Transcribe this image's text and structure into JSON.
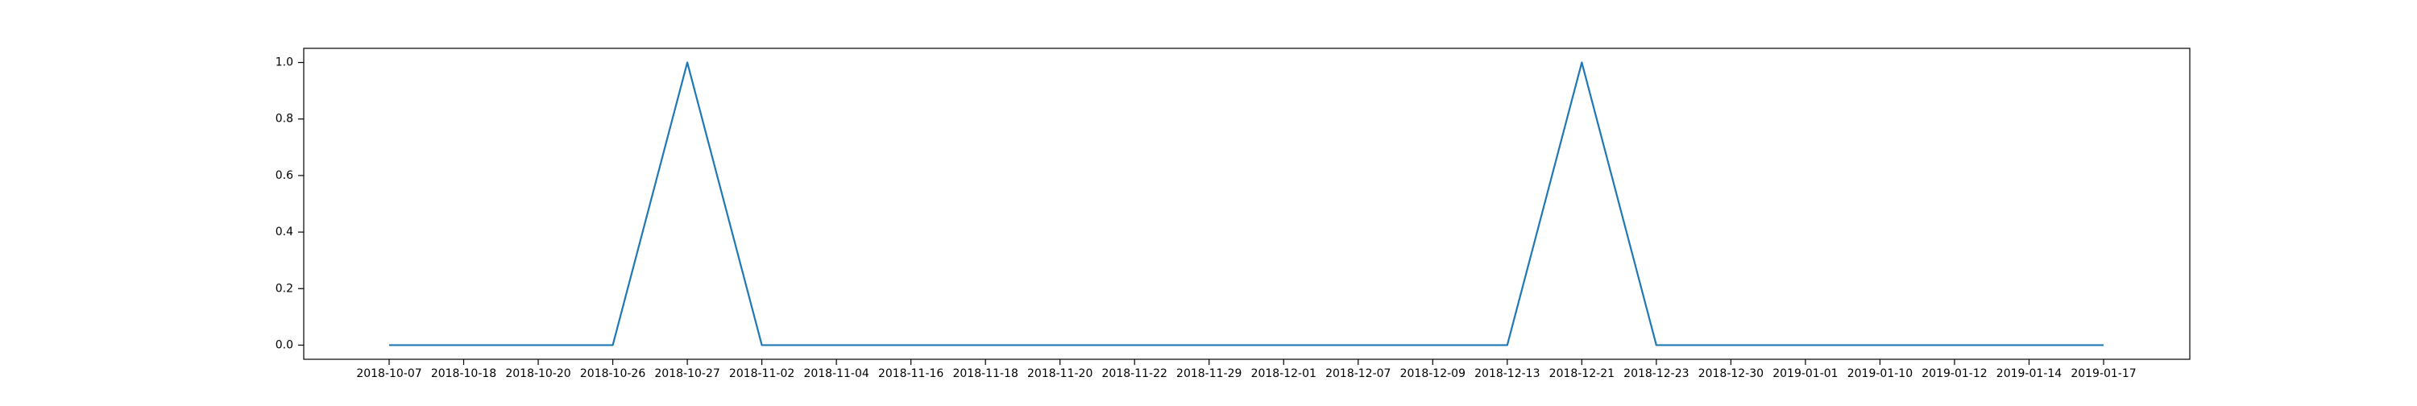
{
  "chart_data": {
    "type": "line",
    "title": "",
    "xlabel": "",
    "ylabel": "",
    "ylim": [
      -0.05,
      1.05
    ],
    "yticks": [
      0.0,
      0.2,
      0.4,
      0.6,
      0.8,
      1.0
    ],
    "ytick_labels": [
      "0.0",
      "0.2",
      "0.4",
      "0.6",
      "0.8",
      "1.0"
    ],
    "categories": [
      "2018-10-07",
      "2018-10-18",
      "2018-10-20",
      "2018-10-26",
      "2018-10-27",
      "2018-11-02",
      "2018-11-04",
      "2018-11-16",
      "2018-11-18",
      "2018-11-20",
      "2018-11-22",
      "2018-11-29",
      "2018-12-01",
      "2018-12-07",
      "2018-12-09",
      "2018-12-13",
      "2018-12-21",
      "2018-12-23",
      "2018-12-30",
      "2019-01-01",
      "2019-01-10",
      "2019-01-12",
      "2019-01-14",
      "2019-01-17"
    ],
    "series": [
      {
        "values": [
          0,
          0,
          0,
          0,
          1,
          0,
          0,
          0,
          0,
          0,
          0,
          0,
          0,
          0,
          0,
          0,
          1,
          0,
          0,
          0,
          0,
          0,
          0,
          0
        ],
        "color": "#1f77b4"
      }
    ],
    "grid": false,
    "legend": "none"
  }
}
